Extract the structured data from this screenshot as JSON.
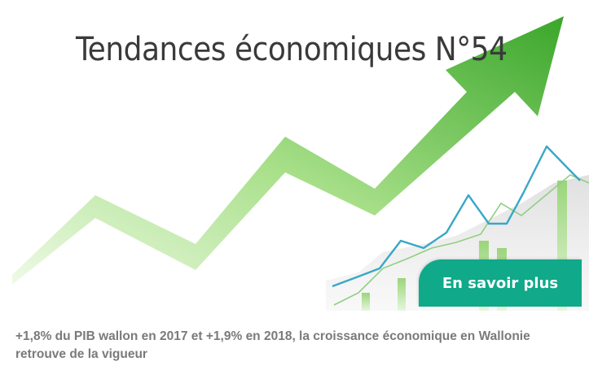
{
  "banner": {
    "title": "Tendances économiques N°54",
    "cta_label": "En savoir plus",
    "arrow_color_start": "#e6f8dc",
    "arrow_color_end": "#3aa62a",
    "accent_color": "#10a98a",
    "line_color_blue": "#3aa7c6",
    "line_color_green": "#8fd080"
  },
  "caption": {
    "text": "+1,8% du PIB wallon en 2017 et +1,9% en 2018, la croissance économique en Wallonie retrouve de la vigueur"
  }
}
